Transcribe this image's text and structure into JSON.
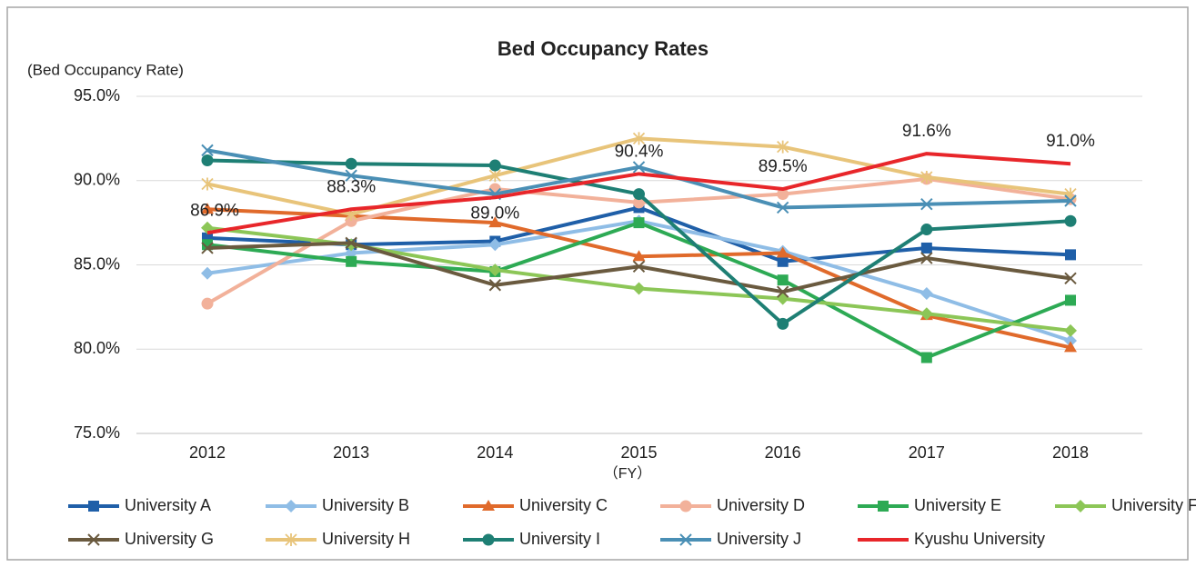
{
  "chart_data": {
    "type": "line",
    "title": "Bed Occupancy Rates",
    "y_label": "(Bed Occupancy Rate)",
    "x_label": "（FY）",
    "categories": [
      "2012",
      "2013",
      "2014",
      "2015",
      "2016",
      "2017",
      "2018"
    ],
    "ylim": [
      75,
      95
    ],
    "yticks": [
      {
        "value": 75,
        "label": "75.0%"
      },
      {
        "value": 80,
        "label": "80.0%"
      },
      {
        "value": 85,
        "label": "85.0%"
      },
      {
        "value": 90,
        "label": "90.0%"
      },
      {
        "value": 95,
        "label": "95.0%"
      }
    ],
    "grid": true,
    "legend": "bottom",
    "series": [
      {
        "name": "University A",
        "color": "#1f5fa8",
        "marker": "square",
        "values": [
          86.6,
          86.2,
          86.4,
          88.4,
          85.2,
          86.0,
          85.6
        ]
      },
      {
        "name": "University B",
        "color": "#8fbde6",
        "marker": "diamond",
        "values": [
          84.5,
          85.7,
          86.2,
          87.6,
          85.8,
          83.3,
          80.5
        ]
      },
      {
        "name": "University C",
        "color": "#e06a2b",
        "marker": "triangle",
        "values": [
          88.3,
          87.9,
          87.5,
          85.5,
          85.7,
          82.0,
          80.1
        ]
      },
      {
        "name": "University D",
        "color": "#f2b19a",
        "marker": "circle",
        "values": [
          82.7,
          87.6,
          89.5,
          88.7,
          89.2,
          90.1,
          88.9
        ]
      },
      {
        "name": "University E",
        "color": "#2daa54",
        "marker": "square",
        "values": [
          86.2,
          85.2,
          84.6,
          87.5,
          84.1,
          79.5,
          82.9
        ]
      },
      {
        "name": "University F",
        "color": "#8cc657",
        "marker": "diamond",
        "values": [
          87.2,
          86.2,
          84.7,
          83.6,
          83.0,
          82.1,
          81.1
        ]
      },
      {
        "name": "University G",
        "color": "#6a5a3f",
        "marker": "x",
        "values": [
          86.0,
          86.3,
          83.8,
          84.9,
          83.4,
          85.4,
          84.2
        ]
      },
      {
        "name": "University H",
        "color": "#e8c47a",
        "marker": "star",
        "values": [
          89.8,
          88.0,
          90.3,
          92.5,
          92.0,
          90.2,
          89.2
        ]
      },
      {
        "name": "University I",
        "color": "#1e7f74",
        "marker": "circle",
        "values": [
          91.2,
          91.0,
          90.9,
          89.2,
          81.5,
          87.1,
          87.6
        ]
      },
      {
        "name": "University J",
        "color": "#4a8fb5",
        "marker": "x",
        "values": [
          91.8,
          90.3,
          89.2,
          90.8,
          88.4,
          88.6,
          88.8
        ]
      },
      {
        "name": "Kyushu University",
        "color": "#e8262a",
        "marker": "none",
        "values": [
          86.9,
          88.3,
          89.0,
          90.4,
          89.5,
          91.6,
          91.0
        ],
        "value_labels": [
          "86.9%",
          "88.3%",
          "89.0%",
          "90.4%",
          "89.5%",
          "91.6%",
          "91.0%"
        ]
      }
    ]
  }
}
